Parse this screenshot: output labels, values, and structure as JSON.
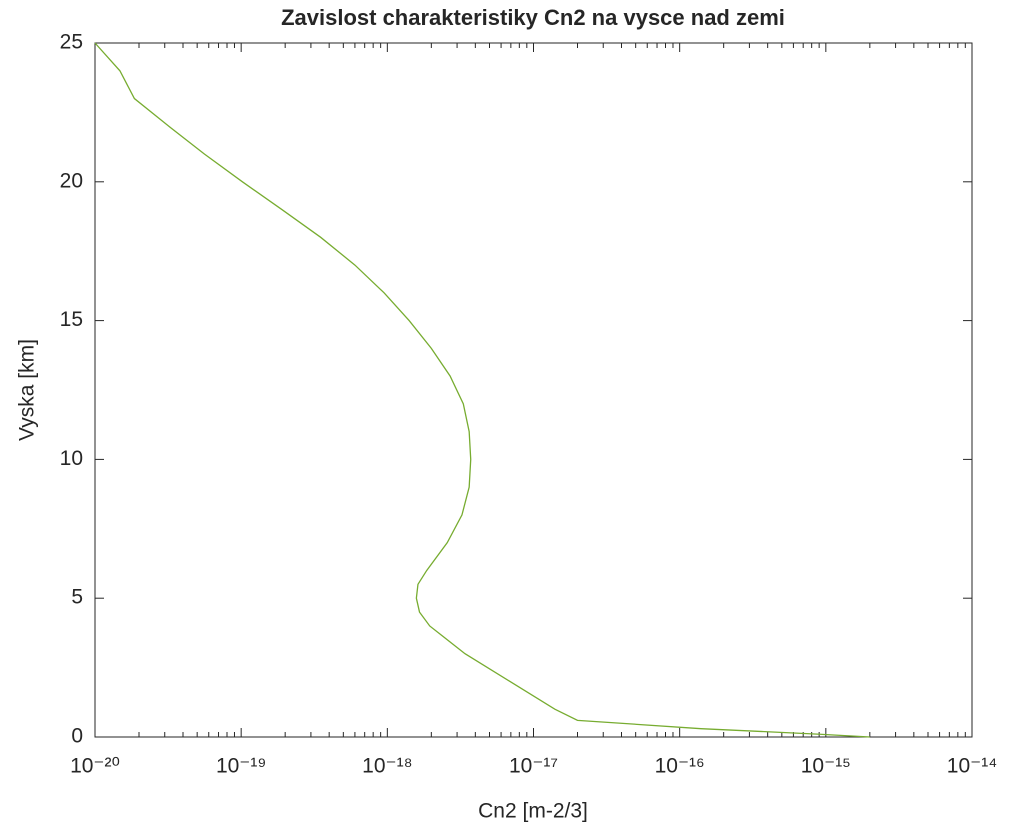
{
  "chart_data": {
    "type": "line",
    "title": "Zavislost charakteristiky Cn2 na vysce nad zemi",
    "xlabel": "Cn2 [m-2/3]",
    "ylabel": "Vyska [km]",
    "xscale": "log",
    "xlim": [
      1e-20,
      1e-14
    ],
    "xticks": [
      {
        "value": 1e-20,
        "label": "10⁻²⁰"
      },
      {
        "value": 1e-19,
        "label": "10⁻¹⁹"
      },
      {
        "value": 1e-18,
        "label": "10⁻¹⁸"
      },
      {
        "value": 1e-17,
        "label": "10⁻¹⁷"
      },
      {
        "value": 1e-16,
        "label": "10⁻¹⁶"
      },
      {
        "value": 1e-15,
        "label": "10⁻¹⁵"
      },
      {
        "value": 1e-14,
        "label": "10⁻¹⁴"
      }
    ],
    "ylim": [
      0,
      25
    ],
    "yticks": [
      0,
      5,
      10,
      15,
      20,
      25
    ],
    "grid": false,
    "color": "#77ac30",
    "x": [
      2e-15,
      9.1e-16,
      1.4e-16,
      2e-17,
      1.4e-17,
      6.9e-18,
      3.4e-18,
      1.95e-18,
      1.66e-18,
      1.58e-18,
      1.62e-18,
      1.86e-18,
      2.57e-18,
      3.24e-18,
      3.63e-18,
      3.72e-18,
      3.63e-18,
      3.31e-18,
      2.69e-18,
      2e-18,
      1.41e-18,
      9.5e-19,
      6e-19,
      3.5e-19,
      1.9e-19,
      1.02e-19,
      5.6e-20,
      3.2e-20,
      1.86e-20,
      1.48e-20,
      1e-20
    ],
    "values": [
      0,
      0.1,
      0.3,
      0.6,
      1,
      2,
      3,
      4,
      4.5,
      5,
      5.5,
      6,
      7,
      8,
      9,
      10,
      11,
      12,
      13,
      14,
      15,
      16,
      17,
      18,
      19,
      20,
      21,
      22,
      23,
      24,
      25
    ]
  }
}
